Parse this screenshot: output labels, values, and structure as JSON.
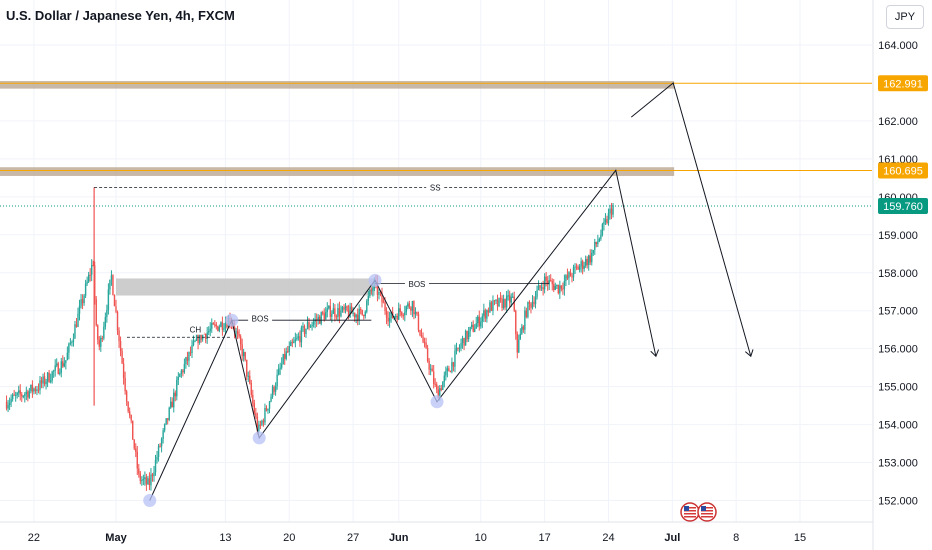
{
  "header": {
    "title": "U.S. Dollar / Japanese Yen, 4h, FXCM",
    "currency": "JPY"
  },
  "colors": {
    "up": "#26a69a",
    "down": "#ef5350",
    "resistance": "#f7a600",
    "zone": "#b5a08a",
    "current": "#089981",
    "drawing": "#131722",
    "gray_zone": "#c8c8c8",
    "pivot": "#b7c2f5"
  },
  "chart_data": {
    "type": "candlestick",
    "title": "U.S. Dollar / Japanese Yen, 4h, FXCM",
    "ylim": [
      151.75,
      164.65
    ],
    "y_ticks": [
      152.0,
      153.0,
      154.0,
      155.0,
      156.0,
      157.0,
      158.0,
      159.0,
      160.0,
      161.0,
      162.0,
      164.0
    ],
    "x_ticks": [
      {
        "label": "22",
        "day": -9
      },
      {
        "label": "May",
        "day": 0
      },
      {
        "label": "13",
        "day": 12
      },
      {
        "label": "20",
        "day": 19
      },
      {
        "label": "27",
        "day": 26
      },
      {
        "label": "Jun",
        "day": 31
      },
      {
        "label": "10",
        "day": 40
      },
      {
        "label": "17",
        "day": 47
      },
      {
        "label": "24",
        "day": 54
      },
      {
        "label": "Jul",
        "day": 61
      },
      {
        "label": "8",
        "day": 68
      },
      {
        "label": "15",
        "day": 75
      }
    ],
    "price_badges": [
      {
        "label": "162.991",
        "value": 162.991,
        "kind": "resistance"
      },
      {
        "label": "160.695",
        "value": 160.695,
        "kind": "resistance"
      },
      {
        "label": "159.760",
        "value": 159.76,
        "kind": "current"
      }
    ],
    "resistance_levels": [
      162.991,
      160.695
    ],
    "current_price": 159.76,
    "key_points": [
      {
        "day": -12,
        "price": 154.6
      },
      {
        "day": -8.5,
        "price": 155.0
      },
      {
        "day": -5.5,
        "price": 155.7
      },
      {
        "day": -2.5,
        "price": 158.3
      },
      {
        "day": -2.2,
        "price": 156.5
      },
      {
        "day": -1.8,
        "price": 156.0
      },
      {
        "day": -0.5,
        "price": 157.9
      },
      {
        "day": 1.0,
        "price": 155.0
      },
      {
        "day": 2.5,
        "price": 152.6
      },
      {
        "day": 3.6,
        "price": 152.4
      },
      {
        "day": 7.0,
        "price": 155.3
      },
      {
        "day": 9.0,
        "price": 156.3
      },
      {
        "day": 12.6,
        "price": 156.8
      },
      {
        "day": 14.0,
        "price": 155.8
      },
      {
        "day": 15.6,
        "price": 153.8
      },
      {
        "day": 18.5,
        "price": 155.8
      },
      {
        "day": 21.0,
        "price": 156.6
      },
      {
        "day": 23.5,
        "price": 157.0
      },
      {
        "day": 27.0,
        "price": 156.9
      },
      {
        "day": 28.3,
        "price": 157.7
      },
      {
        "day": 30.0,
        "price": 156.8
      },
      {
        "day": 32.5,
        "price": 157.2
      },
      {
        "day": 35.2,
        "price": 154.8
      },
      {
        "day": 38.0,
        "price": 156.2
      },
      {
        "day": 41.0,
        "price": 157.1
      },
      {
        "day": 43.5,
        "price": 157.3
      },
      {
        "day": 44.0,
        "price": 156.0
      },
      {
        "day": 45.0,
        "price": 157.0
      },
      {
        "day": 47.0,
        "price": 157.8
      },
      {
        "day": 48.5,
        "price": 157.6
      },
      {
        "day": 50.5,
        "price": 158.1
      },
      {
        "day": 52.0,
        "price": 158.4
      },
      {
        "day": 53.5,
        "price": 159.2
      },
      {
        "day": 54.5,
        "price": 159.78
      }
    ],
    "annotations": [
      {
        "text": "SS",
        "day": 35,
        "price": 160.25
      },
      {
        "text": "CH",
        "day": 8.7,
        "price": 156.5
      },
      {
        "text": "BOS",
        "day": 15.8,
        "price": 156.8
      },
      {
        "text": "BOS",
        "day": 33.0,
        "price": 157.7
      }
    ]
  },
  "drawings": {
    "zigzag": [
      {
        "day": 3.7,
        "price": 152.0
      },
      {
        "day": 12.7,
        "price": 156.75
      },
      {
        "day": 15.7,
        "price": 153.65
      },
      {
        "day": 28.4,
        "price": 157.8
      },
      {
        "day": 35.2,
        "price": 154.6
      },
      {
        "day": 54.8,
        "price": 160.7
      },
      {
        "day": 59.2,
        "price": 155.8
      }
    ],
    "upper_arrow": [
      {
        "day": 56.5,
        "price": 162.1
      },
      {
        "day": 61.1,
        "price": 163.0
      },
      {
        "day": 69.6,
        "price": 155.8
      }
    ],
    "pivots": [
      {
        "day": 3.7,
        "price": 152.0
      },
      {
        "day": 12.7,
        "price": 156.75
      },
      {
        "day": 15.7,
        "price": 153.65
      },
      {
        "day": 28.4,
        "price": 157.8
      },
      {
        "day": 35.2,
        "price": 154.6
      }
    ],
    "ss_line": {
      "x0": -2.4,
      "x1": 54.5,
      "price": 160.25
    },
    "ss_stem_low": 154.5,
    "ch_line": {
      "x0": 1.2,
      "x1": 12.7,
      "price": 156.3
    },
    "bos1_line": {
      "x0": 12.7,
      "x1": 28.0,
      "price": 156.75
    },
    "bos2_line": {
      "x0": 28.4,
      "x1": 47.5,
      "price": 157.72
    },
    "gray_zone": {
      "x0": 0.0,
      "x1": 28.4,
      "top": 157.85,
      "bottom": 157.4
    },
    "resistance_zones": [
      {
        "x0": -13,
        "x1": 61.2,
        "top": 163.05,
        "bottom": 162.85
      },
      {
        "x0": -13,
        "x1": 61.2,
        "top": 160.78,
        "bottom": 160.55
      }
    ]
  }
}
